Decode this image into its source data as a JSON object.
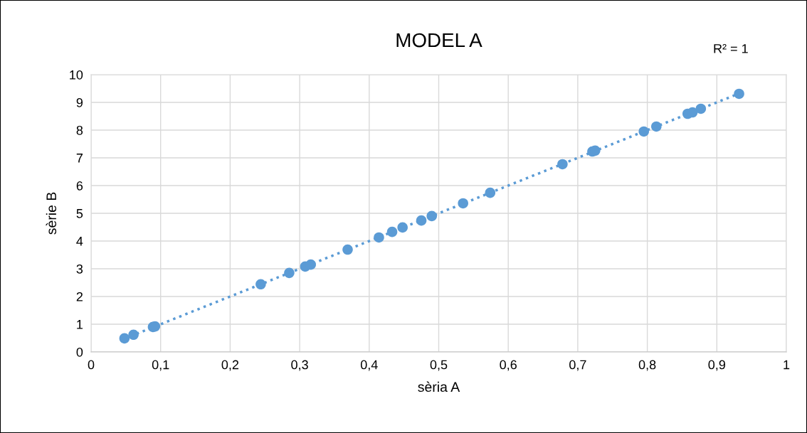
{
  "chart_data": {
    "type": "scatter",
    "title": "MODEL A",
    "xlabel": "sèria A",
    "ylabel": "sèrie B",
    "annotations": [
      "R² = 1"
    ],
    "x": [
      0.048,
      0.061,
      0.089,
      0.092,
      0.244,
      0.285,
      0.308,
      0.316,
      0.369,
      0.414,
      0.433,
      0.448,
      0.475,
      0.49,
      0.535,
      0.574,
      0.678,
      0.721,
      0.725,
      0.795,
      0.813,
      0.858,
      0.865,
      0.877,
      0.932
    ],
    "series": [
      {
        "color": "#5b9bd5",
        "marker": "circle",
        "values": [
          0.49,
          0.62,
          0.9,
          0.92,
          2.44,
          2.85,
          3.08,
          3.15,
          3.69,
          4.13,
          4.33,
          4.49,
          4.74,
          4.9,
          5.36,
          5.74,
          6.77,
          7.23,
          7.26,
          7.95,
          8.13,
          8.59,
          8.64,
          8.77,
          9.31
        ]
      },
      {
        "type": "line",
        "color": "#5b9bd5",
        "line_style": "dotted",
        "marker": "none",
        "x": [
          0.048,
          0.932
        ],
        "values": [
          0.48,
          9.32
        ]
      }
    ],
    "xlim": [
      0,
      1
    ],
    "ylim": [
      0,
      10
    ],
    "xticks": [
      0,
      {
        "value": 0.1,
        "label": "0,1"
      },
      {
        "value": 0.2,
        "label": "0,2"
      },
      {
        "value": 0.3,
        "label": "0,3"
      },
      {
        "value": 0.4,
        "label": "0,4"
      },
      {
        "value": 0.5,
        "label": "0,5"
      },
      {
        "value": 0.6,
        "label": "0,6"
      },
      {
        "value": 0.7,
        "label": "0,7"
      },
      {
        "value": 0.8,
        "label": "0,8"
      },
      {
        "value": 0.9,
        "label": "0,9"
      },
      1
    ],
    "yticks": [
      0,
      1,
      2,
      3,
      4,
      5,
      6,
      7,
      8,
      9,
      10
    ],
    "grid": true,
    "legend": false
  }
}
